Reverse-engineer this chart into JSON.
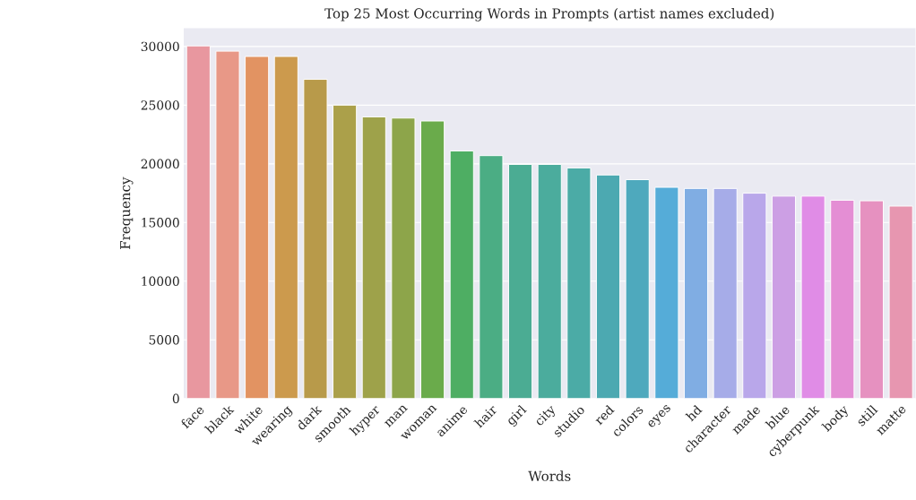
{
  "chart_data": {
    "type": "bar",
    "title": "Top 25 Most Occurring Words in Prompts (artist names excluded)",
    "xlabel": "Words",
    "ylabel": "Frequency",
    "categories": [
      "face",
      "black",
      "white",
      "wearing",
      "dark",
      "smooth",
      "hyper",
      "man",
      "woman",
      "anime",
      "hair",
      "girl",
      "city",
      "studio",
      "red",
      "colors",
      "eyes",
      "hd",
      "character",
      "made",
      "blue",
      "cyberpunk",
      "body",
      "still",
      "matte"
    ],
    "values": [
      30050,
      29600,
      29150,
      29150,
      27200,
      25000,
      24000,
      23900,
      23650,
      21100,
      20700,
      19950,
      19950,
      19650,
      19050,
      18650,
      18000,
      17900,
      17900,
      17500,
      17250,
      17250,
      16900,
      16850,
      16400
    ],
    "colors": [
      "#e8979f",
      "#e89887",
      "#e29362",
      "#cc9a4d",
      "#b89a4a",
      "#aba04a",
      "#9ea24a",
      "#8da54a",
      "#6aab4b",
      "#4eae63",
      "#4bad84",
      "#4bac93",
      "#4bac9d",
      "#4baba6",
      "#4ca9b1",
      "#4ea9bd",
      "#55acd8",
      "#80ade3",
      "#a6ace8",
      "#b9a7ea",
      "#cc9fe4",
      "#e08ce6",
      "#e48ed4",
      "#e691c0",
      "#e796b0"
    ],
    "ylim": [
      0,
      31550
    ],
    "yticks": [
      0,
      5000,
      10000,
      15000,
      20000,
      25000,
      30000
    ],
    "grid": "y"
  }
}
